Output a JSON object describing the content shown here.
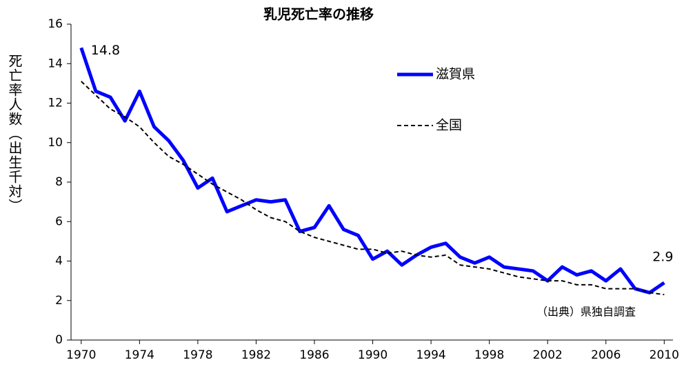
{
  "chart_data": {
    "type": "line",
    "title": "乳児死亡率の推移",
    "y_label": "死亡率人数（出生千対）",
    "annotation": "（出典）県独自調査",
    "x": [
      1970,
      1971,
      1972,
      1973,
      1974,
      1975,
      1976,
      1977,
      1978,
      1979,
      1980,
      1981,
      1982,
      1983,
      1984,
      1985,
      1986,
      1987,
      1988,
      1989,
      1990,
      1991,
      1992,
      1993,
      1994,
      1995,
      1996,
      1997,
      1998,
      1999,
      2000,
      2001,
      2002,
      2003,
      2004,
      2005,
      2006,
      2007,
      2008,
      2009,
      2010
    ],
    "series": [
      {
        "name": "滋賀県",
        "color": "#0000ff",
        "style": "solid",
        "values": [
          14.8,
          12.6,
          12.3,
          11.1,
          12.6,
          10.8,
          10.1,
          9.1,
          7.7,
          8.2,
          6.5,
          6.8,
          7.1,
          7.0,
          7.1,
          5.5,
          5.7,
          6.8,
          5.6,
          5.3,
          4.1,
          4.5,
          3.8,
          4.3,
          4.7,
          4.9,
          4.2,
          3.9,
          4.2,
          3.7,
          3.6,
          3.5,
          3.0,
          3.7,
          3.3,
          3.5,
          3.0,
          3.6,
          2.6,
          2.4,
          2.9
        ]
      },
      {
        "name": "全国",
        "color": "#000000",
        "style": "dashed",
        "values": [
          13.1,
          12.4,
          11.7,
          11.3,
          10.8,
          10.0,
          9.3,
          8.9,
          8.4,
          7.9,
          7.5,
          7.1,
          6.6,
          6.2,
          6.0,
          5.5,
          5.2,
          5.0,
          4.8,
          4.6,
          4.6,
          4.4,
          4.5,
          4.3,
          4.2,
          4.3,
          3.8,
          3.7,
          3.6,
          3.4,
          3.2,
          3.1,
          3.0,
          3.0,
          2.8,
          2.8,
          2.6,
          2.6,
          2.6,
          2.4,
          2.3
        ]
      }
    ],
    "xlim": [
      1969.3,
      2010.6
    ],
    "xticks": [
      1970,
      1974,
      1978,
      1982,
      1986,
      1990,
      1994,
      1998,
      2002,
      2006,
      2010
    ],
    "ylim": [
      0,
      16
    ],
    "yticks": [
      0,
      2,
      4,
      6,
      8,
      10,
      12,
      14,
      16
    ],
    "grid": false,
    "legend": "upper right"
  }
}
